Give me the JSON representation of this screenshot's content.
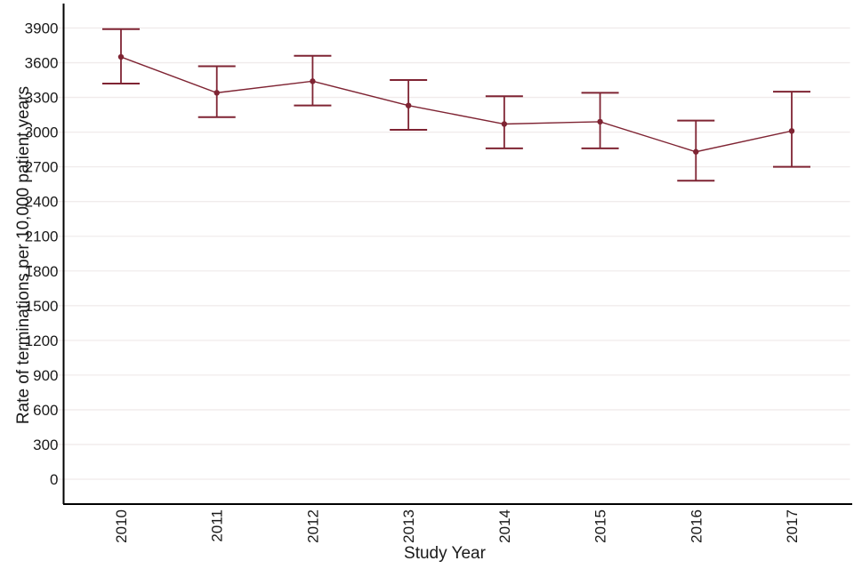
{
  "chart_data": {
    "type": "line",
    "title": "",
    "xlabel": "Study Year",
    "ylabel": "Rate of terminations per 10,000 patient years",
    "x": [
      2010,
      2011,
      2012,
      2013,
      2014,
      2015,
      2016,
      2017
    ],
    "series": [
      {
        "name": "Rate of terminations per 10,000 patient years",
        "values": [
          3650,
          3340,
          3440,
          3230,
          3070,
          3090,
          2830,
          3010
        ],
        "error_upper": [
          3890,
          3570,
          3660,
          3450,
          3310,
          3340,
          3100,
          3350
        ],
        "error_lower": [
          3420,
          3130,
          3230,
          3020,
          2860,
          2860,
          2580,
          2700
        ]
      }
    ],
    "yticks": [
      0,
      300,
      600,
      900,
      1200,
      1500,
      1800,
      2100,
      2400,
      2700,
      3000,
      3300,
      3600,
      3900
    ],
    "ylim": [
      0,
      3900
    ],
    "grid": "horizontal",
    "legend": "none",
    "marker": "circle",
    "colors": {
      "series": "#7f2433",
      "grid": "#f0ebeb",
      "axis": "#000000",
      "text": "#1a1a1a",
      "background": "#ffffff"
    }
  }
}
